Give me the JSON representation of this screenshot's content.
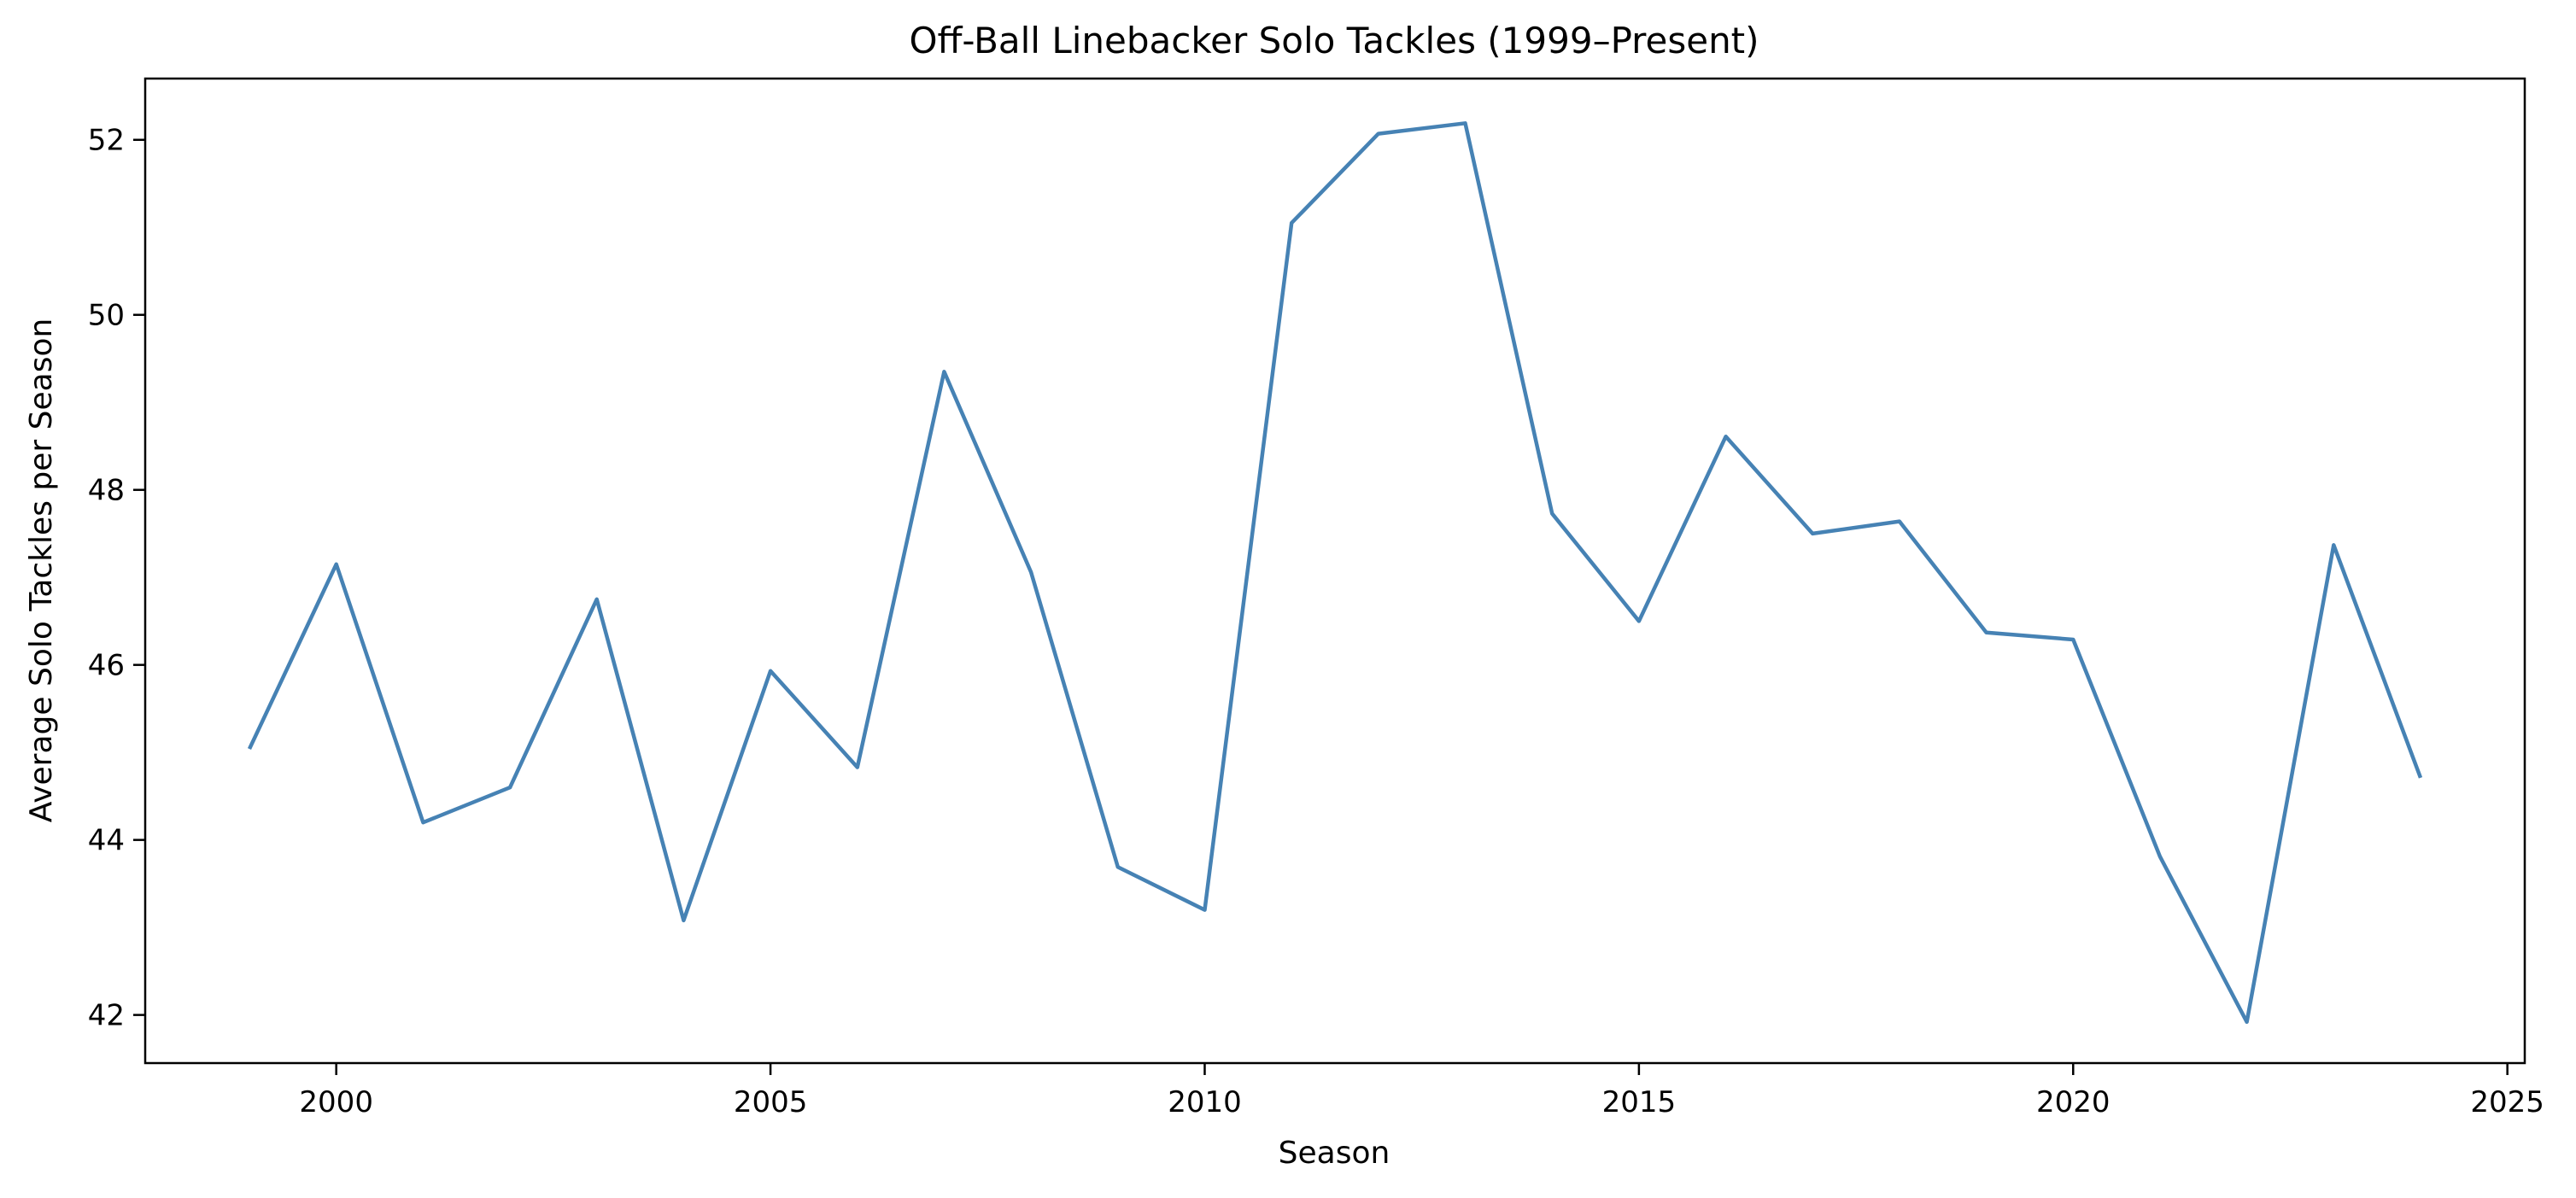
{
  "chart_data": {
    "type": "line",
    "title": "Off-Ball Linebacker Solo Tackles (1999–Present)",
    "xlabel": "Season",
    "ylabel": "Average Solo Tackles per Season",
    "xlim": [
      1997.8,
      2025.2
    ],
    "ylim": [
      41.45,
      52.7
    ],
    "xticks": [
      2000,
      2005,
      2010,
      2015,
      2020,
      2025
    ],
    "yticks": [
      42,
      44,
      46,
      48,
      50,
      52
    ],
    "grid": false,
    "legend": "none",
    "line_color": "#4682b4",
    "x": [
      1999,
      2000,
      2001,
      2002,
      2003,
      2004,
      2005,
      2006,
      2007,
      2008,
      2009,
      2010,
      2011,
      2012,
      2013,
      2014,
      2015,
      2016,
      2017,
      2018,
      2019,
      2020,
      2021,
      2022,
      2023,
      2024
    ],
    "series": [
      {
        "values": [
          45.04,
          47.15,
          44.2,
          44.6,
          46.75,
          43.08,
          45.93,
          44.83,
          49.35,
          47.06,
          43.69,
          43.2,
          51.05,
          52.07,
          52.19,
          47.73,
          46.5,
          48.61,
          47.5,
          47.64,
          46.37,
          46.29,
          43.81,
          41.92,
          47.37,
          44.71
        ]
      }
    ]
  }
}
